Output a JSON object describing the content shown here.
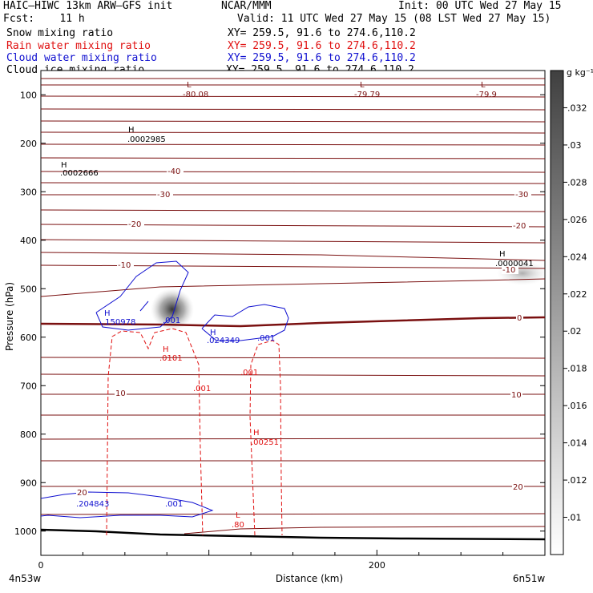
{
  "header": {
    "model": "HAIC—HIWC 13km ARW—GFS init",
    "org": "NCAR/MMM",
    "init": "Init: 00 UTC Wed 27 May 15",
    "fcst": "Fcst:    11 h",
    "valid": "Valid: 11 UTC Wed 27 May 15 (08 LST Wed 27 May 15)",
    "fields": [
      {
        "name": "Snow mixing ratio",
        "xy": "XY= 259.5, 91.6 to 274.6,110.2",
        "color": "#000000"
      },
      {
        "name": "Rain water mixing ratio",
        "xy": "XY= 259.5, 91.6 to 274.6,110.2",
        "color": "#e01010"
      },
      {
        "name": "Cloud water mixing ratio",
        "xy": "XY= 259.5, 91.6 to 274.6,110.2",
        "color": "#1010d0"
      },
      {
        "name": "Cloud ice mixing ratio",
        "xy": "XY= 259.5, 91.6 to 274.6,110.2",
        "color": "#000000"
      }
    ]
  },
  "chart_data": {
    "type": "cross-section",
    "xlabel": "Distance (km)",
    "ylabel": "Pressure (hPa)",
    "xlim": [
      0,
      300
    ],
    "x_ticks": [
      0,
      200
    ],
    "ylim": [
      1050,
      50
    ],
    "y_ticks": [
      100,
      200,
      300,
      400,
      500,
      600,
      700,
      800,
      900,
      1000
    ],
    "x_endpoints": {
      "left": "4n53w",
      "right": "6n51w"
    },
    "colorbar": {
      "unit": "g kg⁻¹",
      "ticks": [
        ".01",
        ".012",
        ".014",
        ".016",
        ".018",
        ".02",
        ".022",
        ".024",
        ".026",
        ".028",
        ".03",
        ".032"
      ]
    },
    "temperature_contour_labels": [
      "-40",
      "-30",
      "-30",
      "-20",
      "-20",
      "-10",
      "-10",
      "0",
      "10",
      "10",
      "20",
      "20"
    ],
    "extrema_labels": [
      {
        "type": "L",
        "value": "-80.08"
      },
      {
        "type": "L",
        "value": "-79.79"
      },
      {
        "type": "L",
        "value": "-79.9"
      },
      {
        "type": "H",
        "value": ".0002985"
      },
      {
        "type": "H",
        "value": ".0002666"
      },
      {
        "type": "H",
        "value": ".0000041"
      },
      {
        "type": "H",
        "value": ".150978"
      },
      {
        "type": "H",
        "value": ".024349"
      },
      {
        "type": "H",
        "value": ".0101"
      },
      {
        "type": "H",
        "value": ".00251"
      },
      {
        "type": "L",
        "value": ".80"
      },
      {
        "type": "H",
        "value": ".204843"
      }
    ],
    "cloud_water_contour_labels": [
      ".001",
      ".001",
      ".001"
    ],
    "rain_water_contour_labels": [
      ".001",
      ".001"
    ]
  }
}
